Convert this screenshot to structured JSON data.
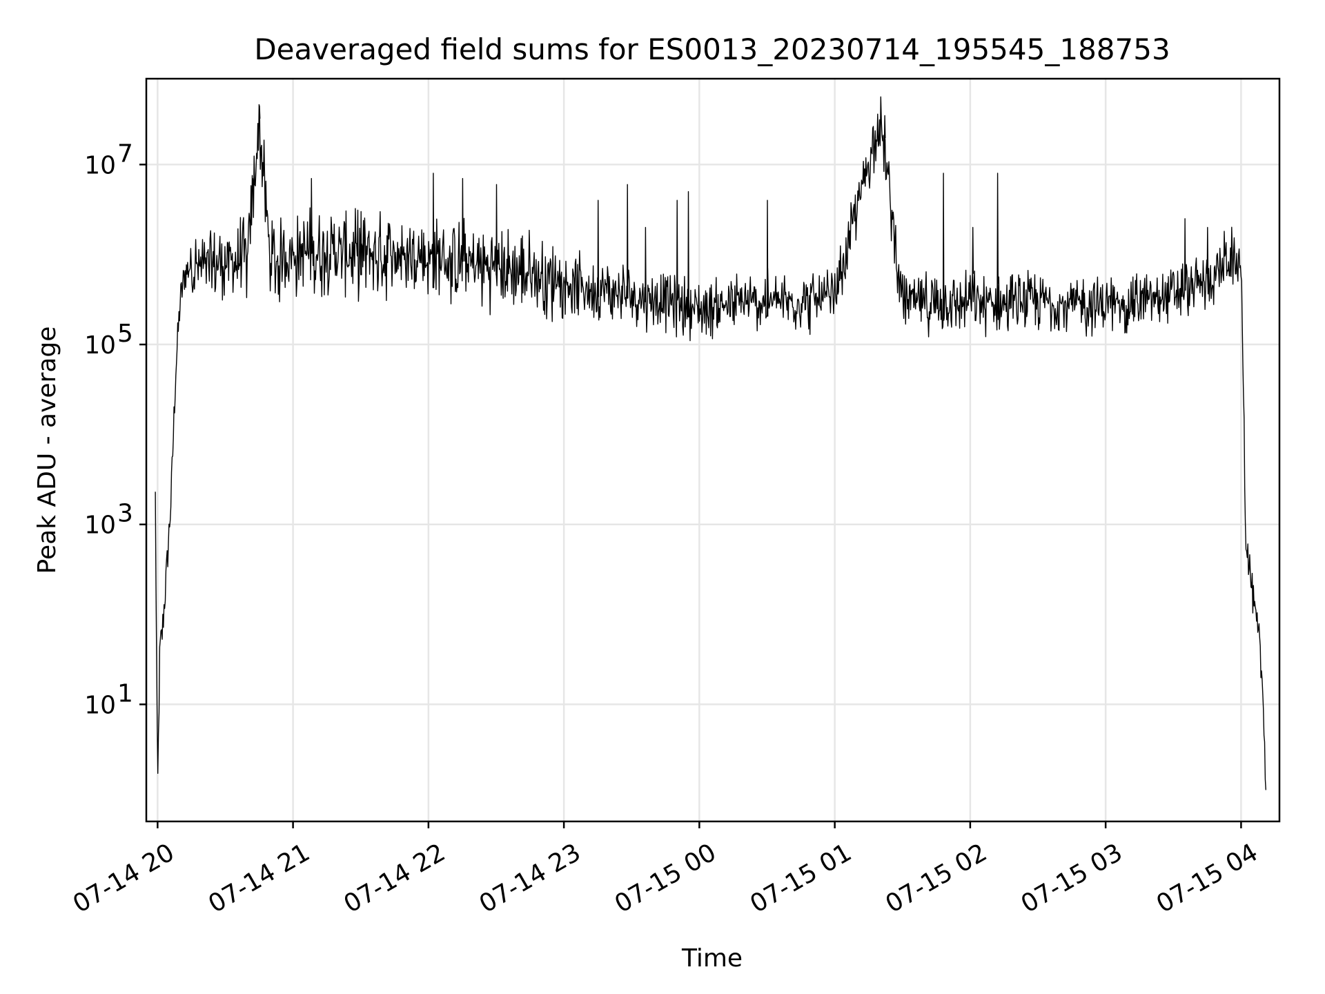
{
  "chart_data": {
    "type": "line",
    "title": "Deaveraged field sums for ES0013_20230714_195545_188753",
    "xlabel": "Time",
    "ylabel": "Peak ADU - average",
    "y_scale": "log",
    "ylim": [
      0.5,
      90000000
    ],
    "xlim": [
      "2023-07-14 19:55",
      "2023-07-15 04:17"
    ],
    "grid": true,
    "line_color": "#000000",
    "x_ticks": [
      {
        "value": "2023-07-14 20:00",
        "label": "07-14 20"
      },
      {
        "value": "2023-07-14 21:00",
        "label": "07-14 21"
      },
      {
        "value": "2023-07-14 22:00",
        "label": "07-14 22"
      },
      {
        "value": "2023-07-14 23:00",
        "label": "07-14 23"
      },
      {
        "value": "2023-07-15 00:00",
        "label": "07-15 00"
      },
      {
        "value": "2023-07-15 01:00",
        "label": "07-15 01"
      },
      {
        "value": "2023-07-15 02:00",
        "label": "07-15 02"
      },
      {
        "value": "2023-07-15 03:00",
        "label": "07-15 03"
      },
      {
        "value": "2023-07-15 04:00",
        "label": "07-15 04"
      }
    ],
    "y_ticks": [
      {
        "value": 10,
        "base": "10",
        "exp": "1"
      },
      {
        "value": 1000,
        "base": "10",
        "exp": "3"
      },
      {
        "value": 100000,
        "base": "10",
        "exp": "5"
      },
      {
        "value": 10000000,
        "base": "10",
        "exp": "7"
      }
    ],
    "series": [
      {
        "x": [
          "2023-07-14 19:59",
          "2023-07-14 20:00",
          "2023-07-14 20:01",
          "2023-07-14 20:02",
          "2023-07-14 20:04",
          "2023-07-14 20:06",
          "2023-07-14 20:08",
          "2023-07-14 20:10",
          "2023-07-14 20:12",
          "2023-07-14 20:15",
          "2023-07-14 20:20",
          "2023-07-14 20:30",
          "2023-07-14 20:40",
          "2023-07-14 20:45",
          "2023-07-14 20:50",
          "2023-07-14 21:00",
          "2023-07-14 21:15",
          "2023-07-14 21:30",
          "2023-07-14 21:45",
          "2023-07-14 22:00",
          "2023-07-14 22:15",
          "2023-07-14 22:30",
          "2023-07-14 22:45",
          "2023-07-14 23:00",
          "2023-07-14 23:15",
          "2023-07-14 23:30",
          "2023-07-14 23:45",
          "2023-07-15 00:00",
          "2023-07-15 00:15",
          "2023-07-15 00:30",
          "2023-07-15 00:45",
          "2023-07-15 01:00",
          "2023-07-15 01:20",
          "2023-07-15 01:30",
          "2023-07-15 01:45",
          "2023-07-15 02:00",
          "2023-07-15 02:15",
          "2023-07-15 02:30",
          "2023-07-15 02:45",
          "2023-07-15 03:00",
          "2023-07-15 03:15",
          "2023-07-15 03:30",
          "2023-07-15 03:45",
          "2023-07-15 03:55",
          "2023-07-15 04:00",
          "2023-07-15 04:01",
          "2023-07-15 04:02",
          "2023-07-15 04:04",
          "2023-07-15 04:06",
          "2023-07-15 04:08",
          "2023-07-15 04:10",
          "2023-07-15 04:11"
        ],
        "y": [
          2000,
          1.0,
          40,
          60,
          300,
          2000,
          50000,
          300000,
          600000,
          800000,
          700000,
          800000,
          900000,
          30000000,
          800000,
          1000000,
          1100000,
          1000000,
          1000000,
          900000,
          800000,
          700000,
          600000,
          500000,
          400000,
          350000,
          300000,
          250000,
          280000,
          300000,
          300000,
          320000,
          35000000,
          300000,
          280000,
          300000,
          280000,
          300000,
          280000,
          270000,
          300000,
          350000,
          500000,
          900000,
          700000,
          50000,
          800,
          300,
          100,
          50,
          10,
          1.0
        ]
      }
    ],
    "spikes": [
      {
        "x": "2023-07-14 20:45",
        "y": 45000000
      },
      {
        "x": "2023-07-14 20:42",
        "y": 7000000
      },
      {
        "x": "2023-07-14 21:08",
        "y": 7000000
      },
      {
        "x": "2023-07-14 21:30",
        "y": 3000000
      },
      {
        "x": "2023-07-14 22:02",
        "y": 8000000
      },
      {
        "x": "2023-07-14 22:15",
        "y": 7000000
      },
      {
        "x": "2023-07-14 22:30",
        "y": 6000000
      },
      {
        "x": "2023-07-14 23:15",
        "y": 4000000
      },
      {
        "x": "2023-07-14 23:28",
        "y": 6000000
      },
      {
        "x": "2023-07-14 23:36",
        "y": 2000000
      },
      {
        "x": "2023-07-14 23:50",
        "y": 4000000
      },
      {
        "x": "2023-07-14 23:55",
        "y": 5000000
      },
      {
        "x": "2023-07-15 00:30",
        "y": 4000000
      },
      {
        "x": "2023-07-15 01:22",
        "y": 35000000
      },
      {
        "x": "2023-07-15 01:48",
        "y": 8000000
      },
      {
        "x": "2023-07-15 02:01",
        "y": 2000000
      },
      {
        "x": "2023-07-15 02:12",
        "y": 8000000
      },
      {
        "x": "2023-07-15 03:35",
        "y": 2500000
      },
      {
        "x": "2023-07-15 03:45",
        "y": 2000000
      }
    ]
  }
}
